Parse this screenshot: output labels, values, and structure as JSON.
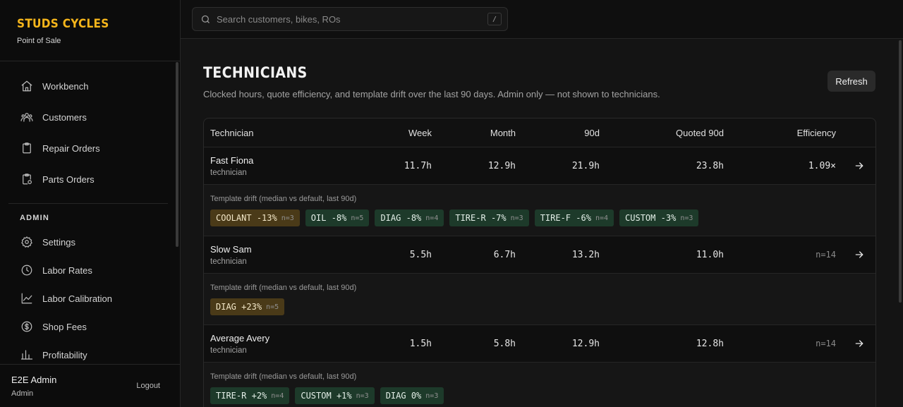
{
  "brand": {
    "name": "STUDS CYCLES",
    "subtitle": "Point of Sale"
  },
  "nav": {
    "items": [
      {
        "label": "Workbench",
        "icon": "home-icon"
      },
      {
        "label": "Customers",
        "icon": "users-icon"
      },
      {
        "label": "Repair Orders",
        "icon": "clipboard-icon"
      },
      {
        "label": "Parts Orders",
        "icon": "clipboard-check-icon"
      }
    ],
    "admin_heading": "ADMIN",
    "admin_items": [
      {
        "label": "Settings",
        "icon": "gear-icon"
      },
      {
        "label": "Labor Rates",
        "icon": "clock-icon"
      },
      {
        "label": "Labor Calibration",
        "icon": "line-chart-icon"
      },
      {
        "label": "Shop Fees",
        "icon": "dollar-circle-icon"
      },
      {
        "label": "Profitability",
        "icon": "chart-icon"
      }
    ]
  },
  "user": {
    "name": "E2E Admin",
    "role": "Admin",
    "logout_label": "Logout"
  },
  "search": {
    "placeholder": "Search customers, bikes, ROs",
    "shortcut": "/"
  },
  "page": {
    "title": "TECHNICIANS",
    "subtitle": "Clocked hours, quote efficiency, and template drift over the last 90 days. Admin only — not shown to technicians.",
    "refresh_label": "Refresh"
  },
  "table": {
    "headers": {
      "technician": "Technician",
      "week": "Week",
      "month": "Month",
      "d90": "90d",
      "quoted": "Quoted 90d",
      "efficiency": "Efficiency"
    },
    "drift_label": "Template drift (median vs default, last 90d)",
    "rows": [
      {
        "name": "Fast Fiona",
        "role": "technician",
        "week": "11.7h",
        "month": "12.9h",
        "d90": "21.9h",
        "quoted": "23.8h",
        "efficiency": "1.09×",
        "drift": [
          {
            "code": "COOLANT",
            "pct": "-13%",
            "n": "n=3",
            "tone": "warm"
          },
          {
            "code": "OIL",
            "pct": "-8%",
            "n": "n=5",
            "tone": "cool"
          },
          {
            "code": "DIAG",
            "pct": "-8%",
            "n": "n=4",
            "tone": "cool"
          },
          {
            "code": "TIRE-R",
            "pct": "-7%",
            "n": "n=3",
            "tone": "cool"
          },
          {
            "code": "TIRE-F",
            "pct": "-6%",
            "n": "n=4",
            "tone": "cool"
          },
          {
            "code": "CUSTOM",
            "pct": "-3%",
            "n": "n=3",
            "tone": "cool"
          }
        ]
      },
      {
        "name": "Slow Sam",
        "role": "technician",
        "week": "5.5h",
        "month": "6.7h",
        "d90": "13.2h",
        "quoted": "11.0h",
        "efficiency": "n=14",
        "drift": [
          {
            "code": "DIAG",
            "pct": "+23%",
            "n": "n=5",
            "tone": "warm"
          }
        ]
      },
      {
        "name": "Average Avery",
        "role": "technician",
        "week": "1.5h",
        "month": "5.8h",
        "d90": "12.9h",
        "quoted": "12.8h",
        "efficiency": "n=14",
        "drift": [
          {
            "code": "TIRE-R",
            "pct": "+2%",
            "n": "n=4",
            "tone": "cool"
          },
          {
            "code": "CUSTOM",
            "pct": "+1%",
            "n": "n=3",
            "tone": "cool"
          },
          {
            "code": "DIAG",
            "pct": "0%",
            "n": "n=3",
            "tone": "cool"
          }
        ]
      }
    ]
  }
}
